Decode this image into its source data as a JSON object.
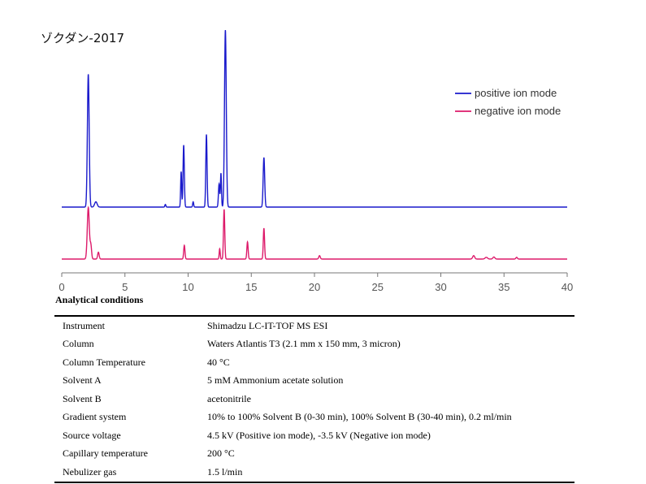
{
  "chart_data": {
    "type": "line",
    "title": "ゾクダン-2017",
    "xlabel": "",
    "ylabel": "",
    "xlim": [
      0,
      40
    ],
    "x_ticks": [
      "0",
      "5",
      "10",
      "15",
      "20",
      "25",
      "30",
      "35",
      "40"
    ],
    "legend_position": "top-right",
    "grid": false,
    "series": [
      {
        "name": "positive ion mode",
        "color": "#1a1acc",
        "peaks": [
          {
            "t": 2.1,
            "h": 0.75,
            "w": 0.07
          },
          {
            "t": 2.7,
            "h": 0.03,
            "w": 0.1
          },
          {
            "t": 8.2,
            "h": 0.015,
            "w": 0.04
          },
          {
            "t": 9.45,
            "h": 0.2,
            "w": 0.04
          },
          {
            "t": 9.65,
            "h": 0.35,
            "w": 0.05
          },
          {
            "t": 10.4,
            "h": 0.03,
            "w": 0.04
          },
          {
            "t": 11.45,
            "h": 0.41,
            "w": 0.05
          },
          {
            "t": 12.45,
            "h": 0.13,
            "w": 0.05
          },
          {
            "t": 12.6,
            "h": 0.19,
            "w": 0.04
          },
          {
            "t": 12.95,
            "h": 1.0,
            "w": 0.07
          },
          {
            "t": 16.0,
            "h": 0.28,
            "w": 0.06
          }
        ]
      },
      {
        "name": "negative ion mode",
        "color": "#dd1a6a",
        "peaks": [
          {
            "t": 2.1,
            "h": 0.3,
            "w": 0.08
          },
          {
            "t": 2.3,
            "h": 0.08,
            "w": 0.06
          },
          {
            "t": 2.9,
            "h": 0.04,
            "w": 0.06
          },
          {
            "t": 9.7,
            "h": 0.08,
            "w": 0.05
          },
          {
            "t": 12.5,
            "h": 0.06,
            "w": 0.04
          },
          {
            "t": 12.85,
            "h": 0.29,
            "w": 0.05
          },
          {
            "t": 14.7,
            "h": 0.1,
            "w": 0.05
          },
          {
            "t": 16.0,
            "h": 0.18,
            "w": 0.05
          },
          {
            "t": 20.4,
            "h": 0.02,
            "w": 0.06
          },
          {
            "t": 32.6,
            "h": 0.02,
            "w": 0.08
          },
          {
            "t": 33.6,
            "h": 0.01,
            "w": 0.1
          },
          {
            "t": 34.2,
            "h": 0.012,
            "w": 0.08
          },
          {
            "t": 36.0,
            "h": 0.01,
            "w": 0.06
          }
        ]
      }
    ]
  },
  "conditions": {
    "heading": "Analytical conditions",
    "rows": [
      {
        "param": "Instrument",
        "value": "Shimadzu LC-IT-TOF MS ESI"
      },
      {
        "param": "Column",
        "value": "Waters Atlantis T3 (2.1 mm x 150 mm, 3 micron)"
      },
      {
        "param": "Column Temperature",
        "value": "40 °C"
      },
      {
        "param": "Solvent A",
        "value": "5 mM Ammonium acetate solution"
      },
      {
        "param": "Solvent B",
        "value": "acetonitrile"
      },
      {
        "param": "Gradient system",
        "value": "10% to 100% Solvent B (0-30 min), 100% Solvent B (30-40 min), 0.2 ml/min"
      },
      {
        "param": "Source voltage",
        "value": "4.5 kV (Positive ion mode), -3.5 kV (Negative ion mode)"
      },
      {
        "param": "Capillary temperature",
        "value": "200 °C"
      },
      {
        "param": "Nebulizer gas",
        "value": "1.5 l/min"
      }
    ]
  }
}
